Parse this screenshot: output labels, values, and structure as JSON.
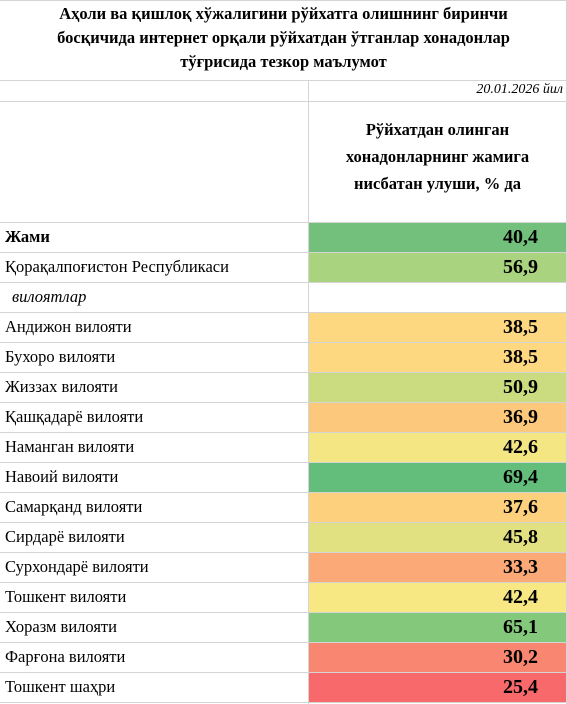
{
  "header": {
    "title_lines": [
      "Аҳоли ва қишлоқ хўжалигини рўйхатга олишнинг биринчи",
      "босқичида интернет орқали рўйхатдан  ўтганлар хонадонлар",
      "тўғрисида тезкор маълумот"
    ],
    "date": "20.01.2026 йил"
  },
  "table": {
    "column_header_lines": [
      "Рўйхатдан олинган",
      "хонадонларнинг жамига",
      "нисбатан улуши, % да"
    ],
    "rows": [
      {
        "name": "Жами",
        "value": "40,4",
        "color": "#72c07b",
        "style": "bold"
      },
      {
        "name": "Қорақалпоғистон Республикаси",
        "value": "56,9",
        "color": "#aad37f"
      },
      {
        "name": "вилоятлар",
        "style": "italic"
      },
      {
        "name": "Андижон вилояти",
        "value": "38,5",
        "color": "#fdd880"
      },
      {
        "name": "Бухоро вилояти",
        "value": "38,5",
        "color": "#fdd880"
      },
      {
        "name": "Жиззах вилояти",
        "value": "50,9",
        "color": "#cadb80"
      },
      {
        "name": "Қашқадарё вилояти",
        "value": "36,9",
        "color": "#fcc97c"
      },
      {
        "name": "Наманган вилояти",
        "value": "42,6",
        "color": "#f4e683"
      },
      {
        "name": "Навоий вилояти",
        "value": "69,4",
        "color": "#63be7b"
      },
      {
        "name": "Самарқанд вилояти",
        "value": "37,6",
        "color": "#fdd07e"
      },
      {
        "name": "Сирдарё вилояти",
        "value": "45,8",
        "color": "#e2e182"
      },
      {
        "name": "Сурхондарё вилояти",
        "value": "33,3",
        "color": "#fbaa77"
      },
      {
        "name": "Тошкент вилояти",
        "value": "42,4",
        "color": "#f7e883"
      },
      {
        "name": "Хоразм вилояти",
        "value": "65,1",
        "color": "#84c87c"
      },
      {
        "name": "Фарғона вилояти",
        "value": "30,2",
        "color": "#f98670"
      },
      {
        "name": "Тошкент шаҳри",
        "value": "25,4",
        "color": "#f8696b"
      }
    ]
  }
}
